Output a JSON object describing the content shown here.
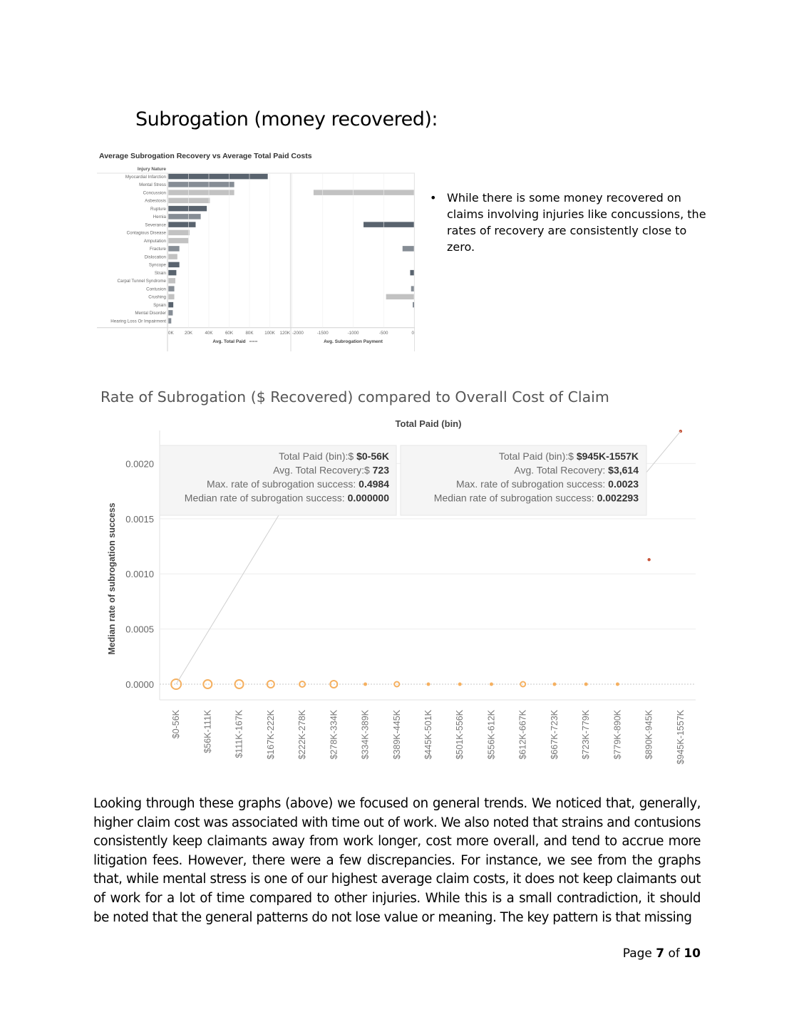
{
  "heading": "Subrogation (money recovered):",
  "bullet_text": "While there is some money recovered on claims involving injuries like concussions, the rates of recovery are consistently close to zero.",
  "chart2_title": "Rate of Subrogation ($ Recovered) compared to Overall Cost of Claim",
  "paragraph": "Looking through these graphs (above) we focused on general trends. We noticed that, generally, higher claim cost was associated with time out of work. We also noted that strains and contusions consistently keep claimants away from work longer, cost more overall, and tend to accrue more litigation fees. However, there were a few discrepancies. For instance, we see from the graphs that, while mental stress is one of our highest average claim costs, it does not keep claimants out of work for a lot of time compared to other injuries. While this is a small contradiction, it should be noted that the general patterns do not lose value or meaning. The key pattern is that missing",
  "footer": {
    "prefix": "Page ",
    "current": "7",
    "middle": " of ",
    "total": "10"
  },
  "chart_data": [
    {
      "type": "bar",
      "title": "Average Subrogation Recovery vs Average Total Paid Costs",
      "row_header": "Injury Nature",
      "categories": [
        "Myocardial Infarction",
        "Mental Stress",
        "Concussion",
        "Asbestosis",
        "Rupture",
        "Hernia",
        "Severance",
        "Contagious Disease",
        "Amputation",
        "Fracture",
        "Dislocation",
        "Syncope",
        "Strain",
        "Carpal Tunnel Syndrome",
        "Contusion",
        "Crushing",
        "Sprain",
        "Mental Disorder",
        "Hearing Loss Or Impairment"
      ],
      "bar_shades": [
        "dark",
        "mid",
        "light",
        "light",
        "dark",
        "mid",
        "dark",
        "light",
        "light",
        "mid",
        "light",
        "dark",
        "dark",
        "light",
        "mid",
        "light",
        "dark",
        "mid",
        "mid"
      ],
      "shade_colors": {
        "dark": "#59636e",
        "mid": "#868d95",
        "light": "#c2c2c2"
      },
      "panels": [
        {
          "xlabel": "Avg. Total Paid",
          "xlim": [
            0,
            120000
          ],
          "ticks": [
            0,
            20000,
            40000,
            60000,
            80000,
            100000,
            120000
          ],
          "tick_labels": [
            "0K",
            "20K",
            "40K",
            "60K",
            "80K",
            "100K",
            "120K"
          ],
          "values": [
            98000,
            65000,
            65000,
            41000,
            38000,
            32000,
            27000,
            21000,
            20000,
            11000,
            9000,
            11000,
            8000,
            7000,
            6000,
            6000,
            5000,
            4500,
            3000
          ]
        },
        {
          "xlabel": "Avg. Subrogation Payment",
          "xlim": [
            -2000,
            0
          ],
          "ticks": [
            -2000,
            -1500,
            -1000,
            -500,
            0
          ],
          "tick_labels": [
            "-2000",
            "-1500",
            "-1000",
            "-500",
            "0"
          ],
          "values": [
            0,
            0,
            -1650,
            0,
            0,
            0,
            -830,
            0,
            0,
            -190,
            0,
            0,
            -65,
            0,
            -50,
            -460,
            -20,
            0,
            0
          ]
        }
      ]
    },
    {
      "type": "scatter",
      "title": "Total Paid (bin)",
      "ylabel": "Median rate of subrogation success",
      "ylim": [
        0,
        0.0023
      ],
      "yticks": [
        0,
        0.0005,
        0.001,
        0.0015,
        0.002
      ],
      "ytick_labels": [
        "0.0000",
        "0.0005",
        "0.0010",
        "0.0015",
        "0.0020"
      ],
      "categories": [
        "$0-56K",
        "$56K-111K",
        "$111K-167K",
        "$167K-222K",
        "$222K-278K",
        "$278K-334K",
        "$334K-389K",
        "$389K-445K",
        "$445K-501K",
        "$501K-556K",
        "$556K-612K",
        "$612K-667K",
        "$667K-723K",
        "$723K-779K",
        "$779K-890K",
        "$890K-945K",
        "$945K-1557K"
      ],
      "values": [
        0,
        0,
        0,
        0,
        0,
        0,
        0,
        0,
        0,
        0,
        0,
        0,
        0,
        0,
        0,
        0.001129,
        0.002293
      ],
      "marker_size": [
        7,
        6,
        6,
        5,
        4,
        5,
        2.5,
        3.5,
        2.5,
        2.5,
        2.5,
        3.5,
        2.5,
        2.5,
        2.5,
        2.2,
        2.2
      ],
      "marker_hollow": [
        true,
        true,
        true,
        true,
        true,
        true,
        false,
        true,
        false,
        false,
        false,
        true,
        false,
        false,
        false,
        false,
        false
      ],
      "colors": {
        "hollow": "#f5b060",
        "filled": "#f5b060",
        "high": "#c8553a"
      },
      "tooltips": [
        {
          "anchor_index": 0,
          "lines": [
            {
              "label": "Total Paid (bin):$ ",
              "value": "$0-56K"
            },
            {
              "label": "Avg. Total Recovery:$ ",
              "value": "723"
            },
            {
              "label": "Max. rate of subrogation success: ",
              "value": "0.4984"
            },
            {
              "label": "Median rate of subrogation success: ",
              "value": "0.000000"
            }
          ]
        },
        {
          "anchor_index": 16,
          "lines": [
            {
              "label": "Total Paid (bin):$ ",
              "value": "$945K-1557K"
            },
            {
              "label": "Avg. Total Recovery: ",
              "value": "$3,614"
            },
            {
              "label": "Max. rate of subrogation success: ",
              "value": "0.0023"
            },
            {
              "label": "Median rate of subrogation success: ",
              "value": "0.002293"
            }
          ]
        }
      ]
    }
  ]
}
